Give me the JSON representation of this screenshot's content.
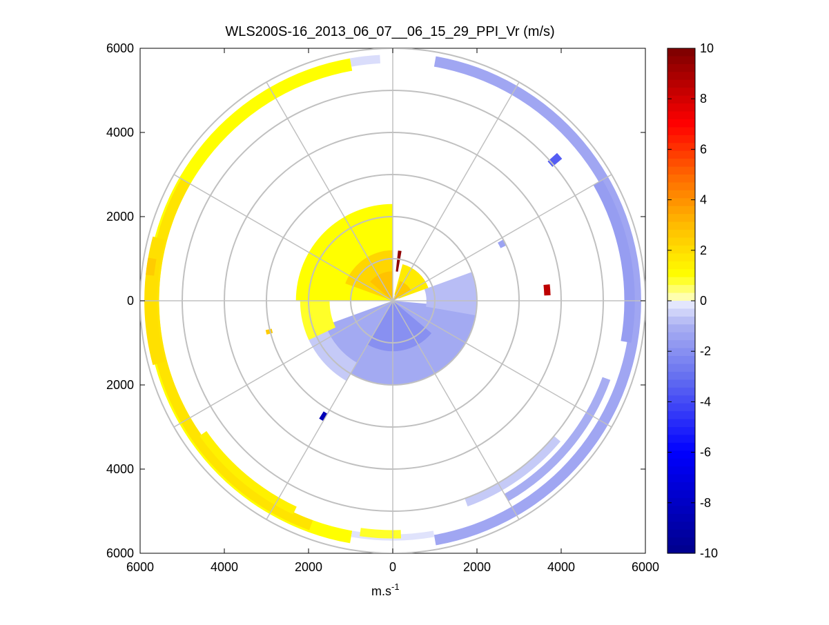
{
  "chart_data": {
    "type": "heatmap",
    "subtype": "polar-ppi",
    "title": "WLS200S-16_2013_06_07__06_15_29_PPI_Vr (m/s)",
    "xlabel": "m.s",
    "xlabel_superscript": "-1",
    "xlim": [
      -6000,
      6000
    ],
    "ylim": [
      -6000,
      6000
    ],
    "x_ticks": [
      {
        "value": -6000,
        "label": "6000"
      },
      {
        "value": -4000,
        "label": "4000"
      },
      {
        "value": -2000,
        "label": "2000"
      },
      {
        "value": 0,
        "label": "0"
      },
      {
        "value": 2000,
        "label": "2000"
      },
      {
        "value": 4000,
        "label": "4000"
      },
      {
        "value": 6000,
        "label": "6000"
      }
    ],
    "y_ticks": [
      {
        "value": 6000,
        "label": "6000"
      },
      {
        "value": 4000,
        "label": "4000"
      },
      {
        "value": 2000,
        "label": "2000"
      },
      {
        "value": 0,
        "label": "0"
      },
      {
        "value": -2000,
        "label": "2000"
      },
      {
        "value": -4000,
        "label": "4000"
      },
      {
        "value": -6000,
        "label": "6000"
      }
    ],
    "range_rings_m": [
      1000,
      2000,
      3000,
      4000,
      5000,
      6000
    ],
    "spokes_deg": [
      0,
      30,
      60,
      90,
      120,
      150,
      180,
      210,
      240,
      270,
      300,
      330
    ],
    "colorbar": {
      "min": -10,
      "max": 10,
      "ticks": [
        {
          "value": 10,
          "label": "10"
        },
        {
          "value": 8,
          "label": "8"
        },
        {
          "value": 6,
          "label": "6"
        },
        {
          "value": 4,
          "label": "4"
        },
        {
          "value": 2,
          "label": "2"
        },
        {
          "value": 0,
          "label": "0"
        },
        {
          "value": -2,
          "label": "-2"
        },
        {
          "value": -4,
          "label": "-4"
        },
        {
          "value": -6,
          "label": "-6"
        },
        {
          "value": -8,
          "label": "-8"
        },
        {
          "value": -10,
          "label": "-10"
        }
      ],
      "stops": [
        {
          "value": -10,
          "color": "#00008c"
        },
        {
          "value": -6,
          "color": "#0000ff"
        },
        {
          "value": -3,
          "color": "#6670f0"
        },
        {
          "value": -1,
          "color": "#aab0f2"
        },
        {
          "value": 0,
          "color": "#eef0ff"
        },
        {
          "value": 0.01,
          "color": "#ffffcc"
        },
        {
          "value": 1,
          "color": "#ffff00"
        },
        {
          "value": 3,
          "color": "#ffbb00"
        },
        {
          "value": 5,
          "color": "#ff6600"
        },
        {
          "value": 7,
          "color": "#ff0000"
        },
        {
          "value": 10,
          "color": "#7a0000"
        }
      ]
    },
    "segments": [
      {
        "r": [
          5550,
          5850
        ],
        "az": [
          190,
          350
        ],
        "v": 1.0
      },
      {
        "r": [
          5550,
          5800
        ],
        "az": [
          200,
          300
        ],
        "v": 1.8
      },
      {
        "r": [
          5400,
          5600
        ],
        "az": [
          205,
          235
        ],
        "v": 1.4
      },
      {
        "r": [
          5600,
          5900
        ],
        "az": [
          255,
          285
        ],
        "v": 1.9
      },
      {
        "r": [
          5700,
          5900
        ],
        "az": [
          276,
          280
        ],
        "v": 2.5
      },
      {
        "r": [
          5650,
          5850
        ],
        "az": [
          350,
          357
        ],
        "v": -0.3
      },
      {
        "r": [
          5650,
          5900
        ],
        "az": [
          10,
          170
        ],
        "v": -1.3
      },
      {
        "r": [
          5500,
          5750
        ],
        "az": [
          60,
          100
        ],
        "v": -1.6
      },
      {
        "r": [
          5300,
          5500
        ],
        "az": [
          110,
          150
        ],
        "v": -1.1
      },
      {
        "r": [
          5000,
          5200
        ],
        "az": [
          130,
          160
        ],
        "v": -0.6
      },
      {
        "r": [
          5550,
          5700
        ],
        "az": [
          170,
          190
        ],
        "v": -0.2
      },
      {
        "r": [
          5450,
          5650
        ],
        "az": [
          178,
          188
        ],
        "v": 0.8
      },
      {
        "r": [
          4950,
          5250
        ],
        "az": [
          48,
          50
        ],
        "v": -3.5
      },
      {
        "r": [
          0,
          2300
        ],
        "az": [
          270,
          360
        ],
        "v": 1.0
      },
      {
        "r": [
          0,
          1200
        ],
        "az": [
          290,
          360
        ],
        "v": 2.2
      },
      {
        "r": [
          0,
          700
        ],
        "az": [
          310,
          360
        ],
        "v": 2.8
      },
      {
        "r": [
          150,
          900
        ],
        "az": [
          15,
          70
        ],
        "v": 1.6
      },
      {
        "r": [
          0,
          500
        ],
        "az": [
          20,
          60
        ],
        "v": 2.6
      },
      {
        "r": [
          0,
          2000
        ],
        "az": [
          95,
          250
        ],
        "v": -1.2
      },
      {
        "r": [
          0,
          1200
        ],
        "az": [
          130,
          210
        ],
        "v": -2.0
      },
      {
        "r": [
          800,
          2000
        ],
        "az": [
          70,
          100
        ],
        "v": -0.8
      },
      {
        "r": [
          1700,
          2200
        ],
        "az": [
          210,
          250
        ],
        "v": -0.6
      },
      {
        "r": [
          1500,
          2200
        ],
        "az": [
          245,
          270
        ],
        "v": 0.8
      },
      {
        "r": [
          700,
          1200
        ],
        "az": [
          6,
          10
        ],
        "v": 9.5
      },
      {
        "r": [
          3600,
          3750
        ],
        "az": [
          84,
          88
        ],
        "v": 8.5
      },
      {
        "r": [
          3100,
          3300
        ],
        "az": [
          210,
          212
        ],
        "v": -8.5
      },
      {
        "r": [
          2950,
          3100
        ],
        "az": [
          255,
          257
        ],
        "v": 2.5
      },
      {
        "r": [
          2850,
          3000
        ],
        "az": [
          61,
          64
        ],
        "v": -1.4
      }
    ]
  }
}
